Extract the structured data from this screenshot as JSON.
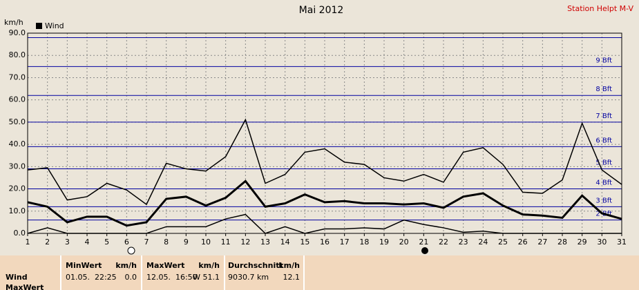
{
  "chart_data": {
    "type": "line",
    "title": "Mai 2012",
    "subtitle": "Station Helpt M-V",
    "y_label": "km/h",
    "x": [
      1,
      2,
      3,
      4,
      5,
      6,
      7,
      8,
      9,
      10,
      11,
      12,
      13,
      14,
      15,
      16,
      17,
      18,
      19,
      20,
      21,
      22,
      23,
      24,
      25,
      26,
      27,
      28,
      29,
      30,
      31
    ],
    "xlim": [
      1,
      31
    ],
    "xticks": [
      1,
      2,
      3,
      4,
      5,
      6,
      7,
      8,
      9,
      10,
      11,
      12,
      13,
      14,
      15,
      16,
      17,
      18,
      19,
      20,
      21,
      22,
      23,
      24,
      25,
      26,
      27,
      28,
      29,
      30,
      31
    ],
    "ylim": [
      0,
      90
    ],
    "yticks": [
      {
        "value": 0,
        "label": "0.0"
      },
      {
        "value": 10,
        "label": "10.0"
      },
      {
        "value": 20,
        "label": "20.0"
      },
      {
        "value": 30,
        "label": "30.0"
      },
      {
        "value": 40,
        "label": "40.0"
      },
      {
        "value": 50,
        "label": "50.0"
      },
      {
        "value": 60,
        "label": "60.0"
      },
      {
        "value": 70,
        "label": "70.0"
      },
      {
        "value": 80,
        "label": "80.0"
      },
      {
        "value": 90,
        "label": "90.0"
      }
    ],
    "grid": true,
    "legend": "top-left",
    "series": [
      {
        "name": "Wind",
        "color": "#000000",
        "values": [
          14,
          12,
          5,
          7.5,
          7.5,
          3.5,
          5,
          15.5,
          16.5,
          12.5,
          16,
          23.5,
          12,
          13.5,
          17.5,
          14,
          14.5,
          13.5,
          13.5,
          13,
          13.5,
          11.5,
          16.5,
          18,
          12.5,
          8.5,
          8,
          7,
          17,
          9,
          6.5
        ],
        "max_values": [
          28.5,
          29.5,
          15,
          16.5,
          22.5,
          19.5,
          13,
          31.5,
          29,
          28,
          34.5,
          51.1,
          22.5,
          26.5,
          36.5,
          38,
          32,
          31,
          25,
          23.5,
          26.5,
          23,
          36.5,
          38.5,
          31,
          18.5,
          18,
          24,
          49.5,
          28.5,
          22
        ],
        "min_values": [
          0,
          2.5,
          0,
          0,
          0,
          0,
          0,
          3,
          3,
          3,
          6.5,
          8.5,
          0,
          3,
          0,
          2,
          2,
          2.5,
          2,
          6,
          4,
          2.5,
          0.5,
          1,
          0,
          0,
          0,
          0,
          0,
          0,
          0
        ]
      }
    ],
    "beaufort_color": "#0000a0",
    "beaufort_lines": [
      6,
      12,
      20,
      29,
      39,
      50,
      62,
      75,
      88
    ],
    "beaufort_labels": [
      "2 Bft",
      "3 Bft",
      "4 Bft",
      "5 Bft",
      "6 Bft",
      "7 Bft",
      "8 Bft",
      "9 Bft",
      null
    ]
  },
  "table": {
    "row_labels": [
      "Wind",
      "MaxWert"
    ],
    "columns": [
      {
        "header": "MinWert",
        "unit": "km/h",
        "time": "01.05.  22:25",
        "value": "0.0"
      },
      {
        "header": "MaxWert",
        "unit": "km/h",
        "time": "12.05.  16:50",
        "value": "W 51.1"
      },
      {
        "header": "Durchschnitt",
        "unit": "km/h",
        "time": "9030.7 km",
        "value": "12.1"
      }
    ]
  }
}
